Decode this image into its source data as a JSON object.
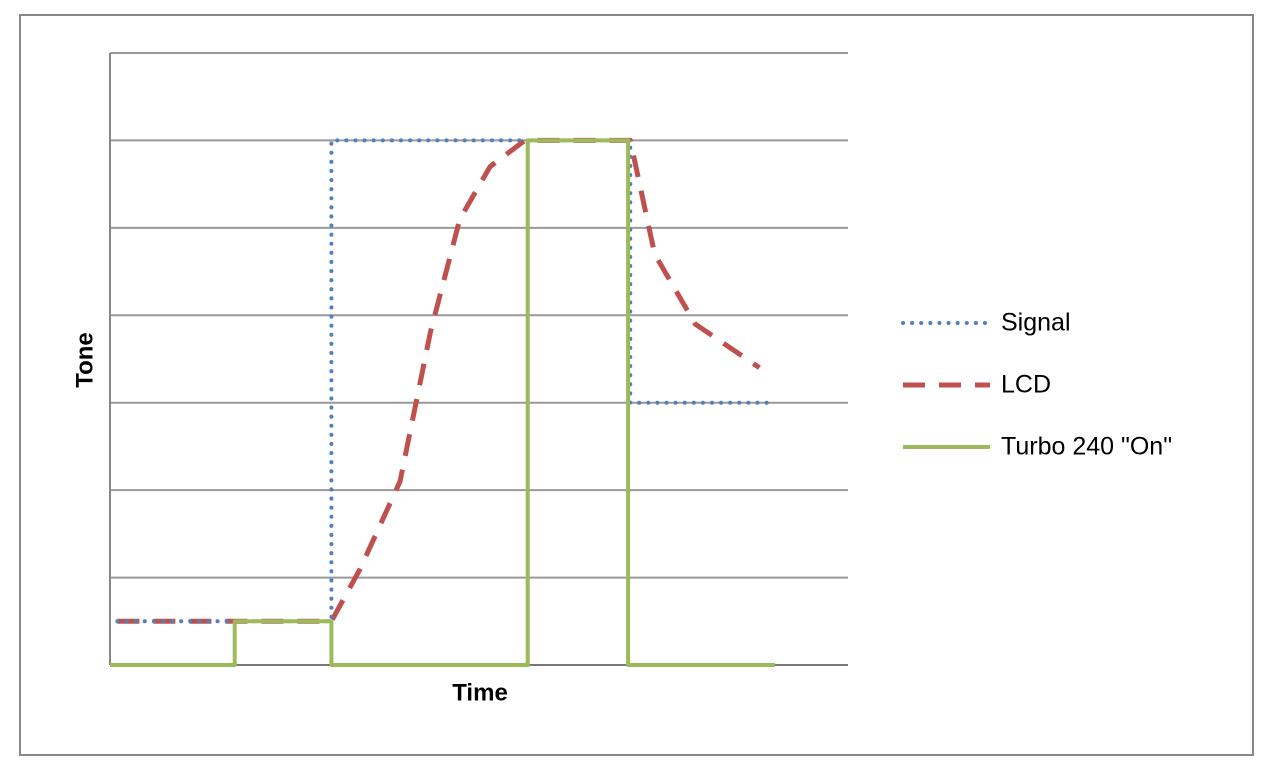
{
  "chart_data": {
    "type": "line",
    "xlabel": "Time",
    "ylabel": "Tone",
    "xlim": [
      0,
      100
    ],
    "ylim": [
      0,
      7
    ],
    "yticks": [
      0,
      1,
      2,
      3,
      4,
      5,
      6,
      7
    ],
    "grid": true,
    "tick_labels": false,
    "legend": "right",
    "series": [
      {
        "name": "Signal",
        "color": "#4f81bd",
        "dash": "dotted",
        "x": [
          1,
          30,
          30,
          70.5,
          70.5,
          90
        ],
        "values": [
          0.5,
          0.5,
          6,
          6,
          3,
          3
        ]
      },
      {
        "name": "LCD",
        "color": "#c0504d",
        "dash": "dashed",
        "x": [
          1,
          30,
          33.9,
          39.3,
          43.4,
          47.4,
          51.5,
          56.2,
          59,
          70.5,
          73.8,
          79.3,
          88
        ],
        "values": [
          0.5,
          0.5,
          1.1,
          2.1,
          3.8,
          5.1,
          5.7,
          6,
          6,
          6,
          4.7,
          3.9,
          3.4
        ]
      },
      {
        "name": "Turbo 240 \"On\"",
        "color": "#9bbb59",
        "dash": "solid",
        "x": [
          0,
          16.9,
          16.9,
          30,
          30,
          56.6,
          56.6,
          70.2,
          70.2,
          90.1
        ],
        "values": [
          0,
          0,
          0.5,
          0.5,
          0,
          0,
          6,
          6,
          0,
          0
        ]
      }
    ]
  }
}
